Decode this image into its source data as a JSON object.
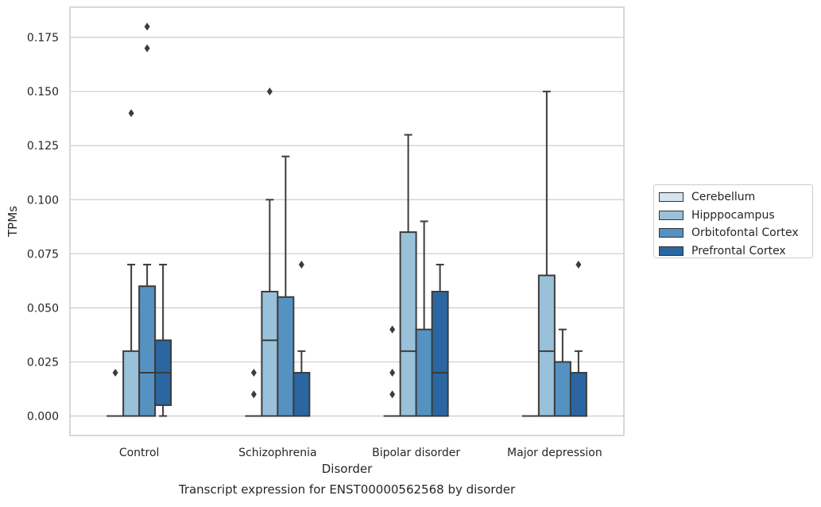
{
  "caption": "Transcript expression for ENST00000562568 by disorder",
  "chart_data": {
    "type": "box",
    "xlabel": "Disorder",
    "ylabel": "TPMs",
    "ylim": [
      -0.009,
      0.189
    ],
    "yticks": [
      0.0,
      0.025,
      0.05,
      0.075,
      0.1,
      0.125,
      0.15,
      0.175
    ],
    "ytick_labels": [
      "0.000",
      "0.025",
      "0.050",
      "0.075",
      "0.100",
      "0.125",
      "0.150",
      "0.175"
    ],
    "grid": "horizontal",
    "legend_position": "right",
    "categories": [
      "Control",
      "Schizophrenia",
      "Bipolar disorder",
      "Major depression"
    ],
    "series": [
      {
        "name": "Cerebellum",
        "color": "#d3e4f3",
        "boxes": [
          {
            "q1": 0,
            "median": 0,
            "q3": 0,
            "lo": 0,
            "hi": 0,
            "outliers": [
              0.02
            ]
          },
          {
            "q1": 0,
            "median": 0,
            "q3": 0,
            "lo": 0,
            "hi": 0,
            "outliers": [
              0.01,
              0.02
            ]
          },
          {
            "q1": 0,
            "median": 0,
            "q3": 0,
            "lo": 0,
            "hi": 0,
            "outliers": [
              0.01,
              0.02,
              0.04
            ]
          },
          {
            "q1": 0,
            "median": 0,
            "q3": 0,
            "lo": 0,
            "hi": 0,
            "outliers": []
          }
        ]
      },
      {
        "name": "Hipppocampus",
        "color": "#9ac1da",
        "boxes": [
          {
            "q1": 0,
            "median": 0,
            "q3": 0.03,
            "lo": 0,
            "hi": 0.07,
            "outliers": [
              0.14
            ]
          },
          {
            "q1": 0,
            "median": 0.035,
            "q3": 0.0575,
            "lo": 0,
            "hi": 0.1,
            "outliers": [
              0.15
            ]
          },
          {
            "q1": 0,
            "median": 0.03,
            "q3": 0.085,
            "lo": 0,
            "hi": 0.13,
            "outliers": []
          },
          {
            "q1": 0,
            "median": 0.03,
            "q3": 0.065,
            "lo": 0,
            "hi": 0.15,
            "outliers": []
          }
        ]
      },
      {
        "name": "Orbitofontal Cortex",
        "color": "#5592c1",
        "boxes": [
          {
            "q1": 0,
            "median": 0.02,
            "q3": 0.06,
            "lo": 0,
            "hi": 0.07,
            "outliers": [
              0.17,
              0.18
            ]
          },
          {
            "q1": 0,
            "median": 0,
            "q3": 0.055,
            "lo": 0,
            "hi": 0.12,
            "outliers": []
          },
          {
            "q1": 0,
            "median": 0,
            "q3": 0.04,
            "lo": 0,
            "hi": 0.09,
            "outliers": []
          },
          {
            "q1": 0,
            "median": 0,
            "q3": 0.025,
            "lo": 0,
            "hi": 0.04,
            "outliers": []
          }
        ]
      },
      {
        "name": "Prefrontal Cortex",
        "color": "#2a66a1",
        "boxes": [
          {
            "q1": 0.005,
            "median": 0.02,
            "q3": 0.035,
            "lo": 0,
            "hi": 0.07,
            "outliers": []
          },
          {
            "q1": 0,
            "median": 0,
            "q3": 0.02,
            "lo": 0,
            "hi": 0.03,
            "outliers": [
              0.07
            ]
          },
          {
            "q1": 0,
            "median": 0.02,
            "q3": 0.0575,
            "lo": 0,
            "hi": 0.07,
            "outliers": []
          },
          {
            "q1": 0,
            "median": 0,
            "q3": 0.02,
            "lo": 0,
            "hi": 0.03,
            "outliers": [
              0.07
            ]
          }
        ]
      }
    ]
  }
}
